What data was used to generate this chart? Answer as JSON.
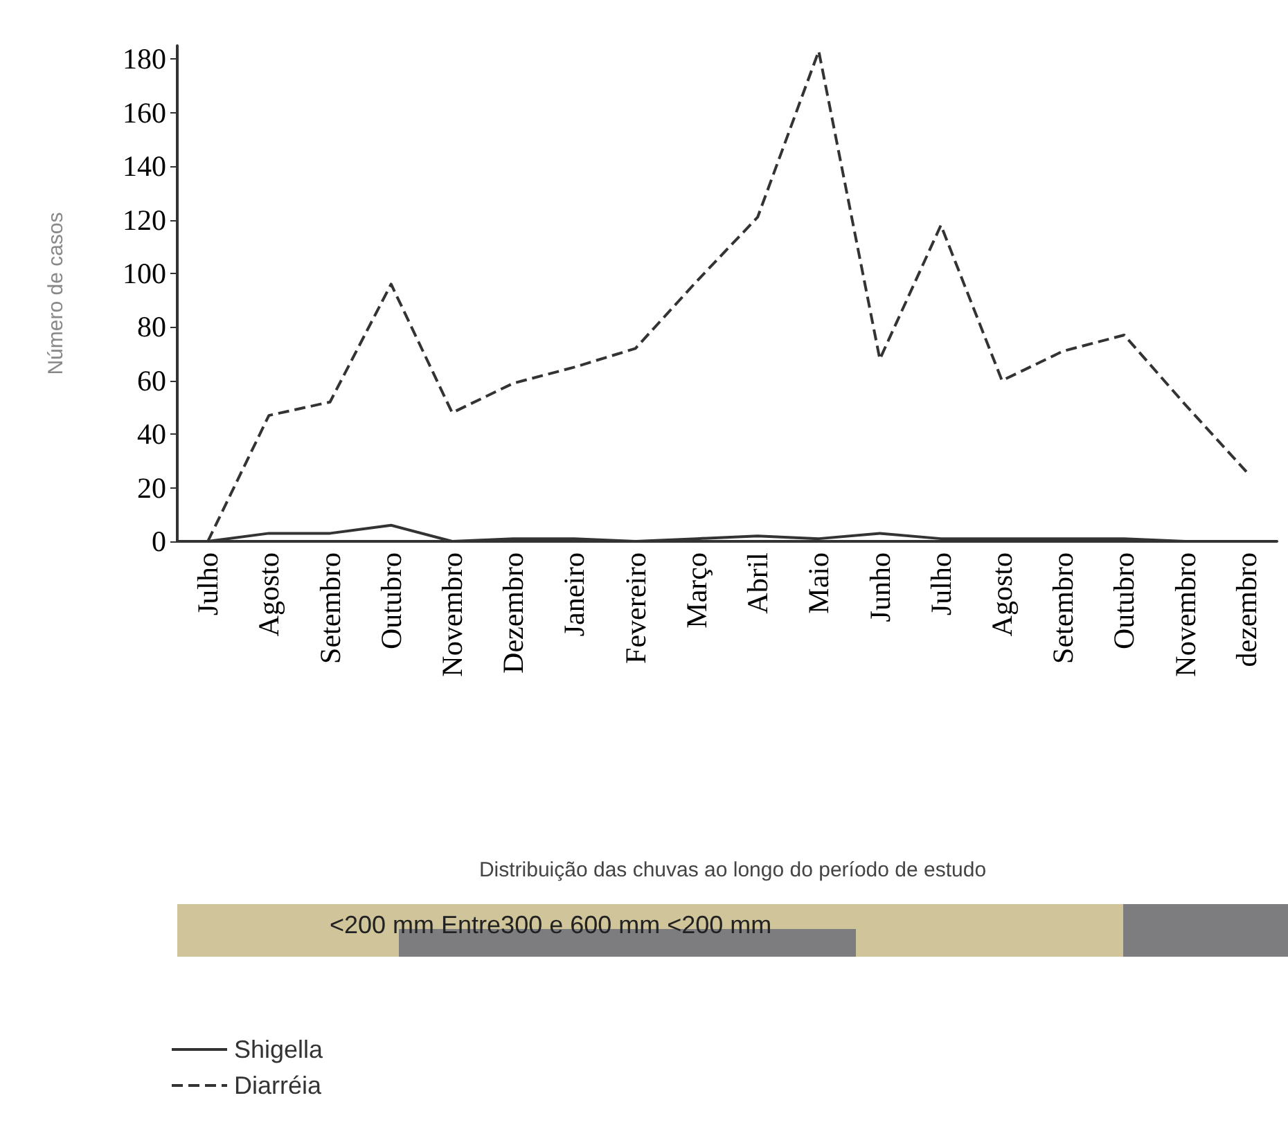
{
  "chart_data": {
    "type": "line",
    "ylabel": "Número de casos",
    "categories": [
      "Julho",
      "Agosto",
      "Setembro",
      "Outubro",
      "Novembro",
      "Dezembro",
      "Janeiro",
      "Fevereiro",
      "Março",
      "Abril",
      "Maio",
      "Junho",
      "Julho",
      "Agosto",
      "Setembro",
      "Outubro",
      "Novembro",
      "dezembro"
    ],
    "series": [
      {
        "name": "Shigella",
        "color": "#333333",
        "line_style": "solid",
        "values": [
          0,
          3,
          3,
          6,
          0,
          1,
          1,
          0,
          1,
          2,
          1,
          3,
          1,
          1,
          1,
          1,
          0,
          0
        ]
      },
      {
        "name": "Diarréia",
        "color": "#333333",
        "line_style": "dashed",
        "values": [
          0,
          47,
          52,
          96,
          48,
          59,
          65,
          72,
          97,
          121,
          183,
          68,
          118,
          60,
          71,
          77,
          51,
          26
        ]
      }
    ],
    "ylim": [
      0,
      185
    ],
    "yticks": [
      0,
      20,
      40,
      60,
      80,
      100,
      120,
      140,
      160,
      180
    ],
    "grid": false,
    "legend": "bottom left",
    "marker": "none",
    "annotations": [
      "Distribuição das chuvas ao longo do período de estudo",
      "<200 mm Entre300 e 600 mm <200 mm"
    ]
  }
}
